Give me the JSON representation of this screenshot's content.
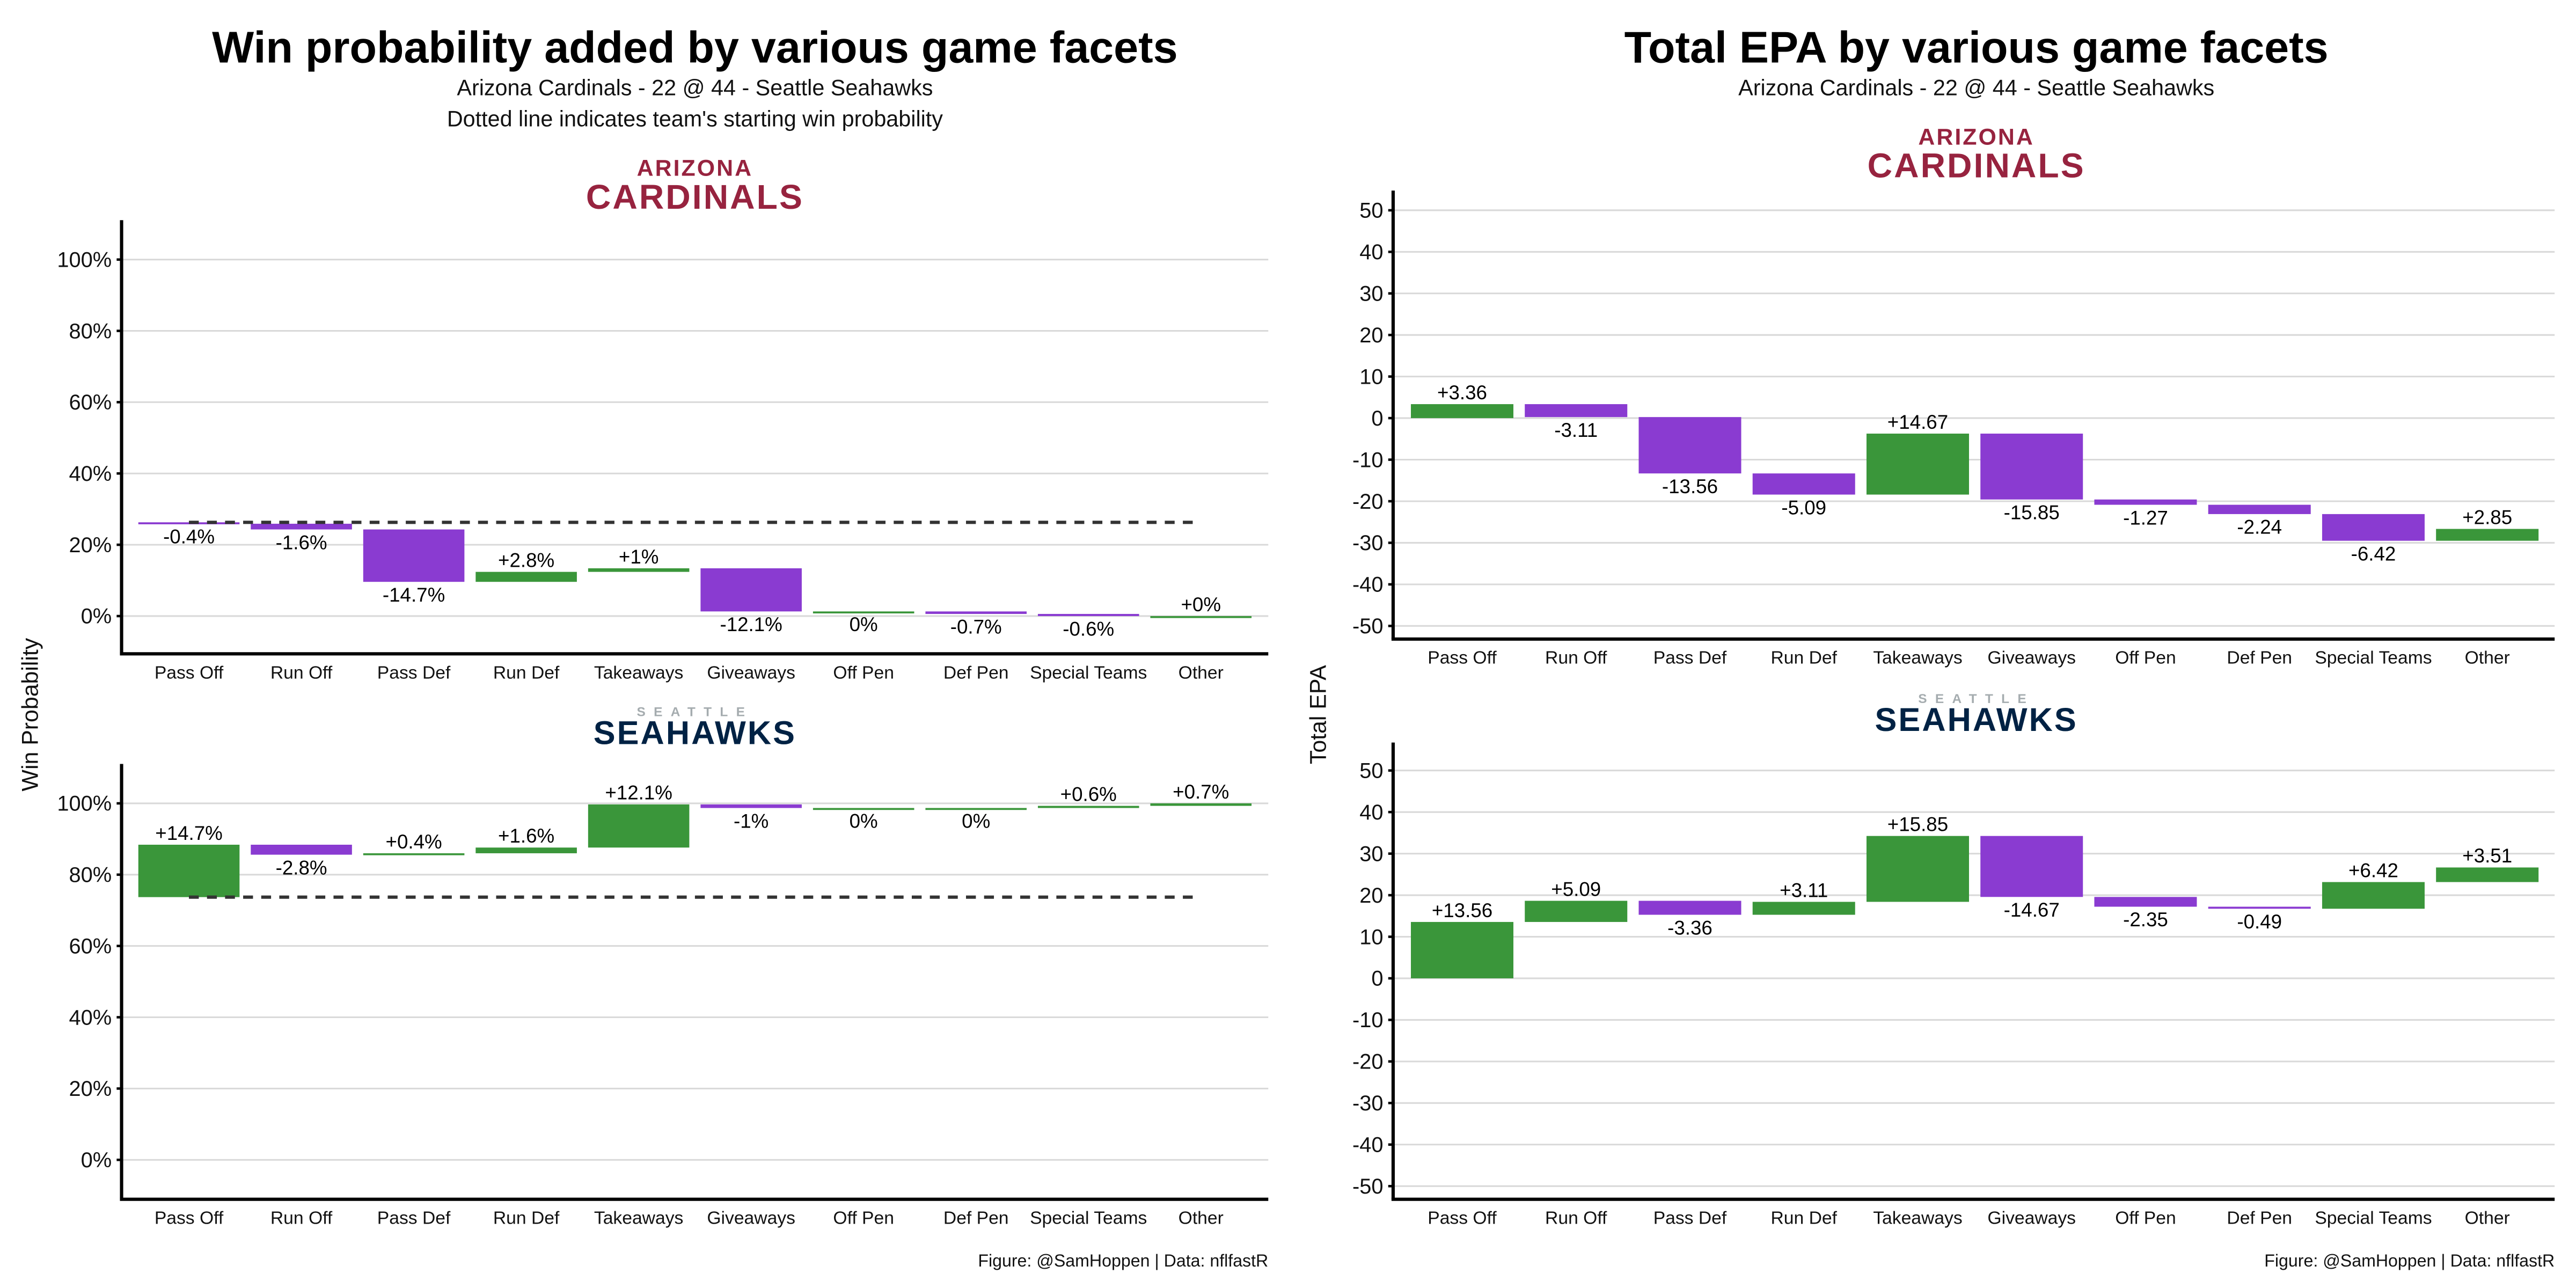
{
  "colors": {
    "positive": "#3a963a",
    "negative": "#8a3bd1",
    "grid": "#d9d9d9",
    "dashed": "#333333",
    "cardinals": "#97233F",
    "seahawks": "#002244"
  },
  "left": {
    "title": "Win probability added by various game facets",
    "subtitle1": "Arizona Cardinals - 22 @ 44 - Seattle Seahawks",
    "subtitle2": "Dotted line indicates team's starting win probability",
    "ylabel": "Win Probability",
    "caption": "Figure: @SamHoppen | Data: nflfastR"
  },
  "right": {
    "title": "Total EPA by various game facets",
    "subtitle1": "Arizona Cardinals - 22 @ 44 - Seattle Seahawks",
    "ylabel": "Total EPA",
    "caption": "Figure: @SamHoppen | Data: nflfastR"
  },
  "logos": {
    "cardinals": [
      "ARIZONA",
      "CARDINALS"
    ],
    "seahawks": [
      "SEATTLE",
      "SEAHAWKS"
    ]
  },
  "chart_data": [
    {
      "type": "bar",
      "subtype": "waterfall",
      "team": "Arizona Cardinals",
      "ylabel": "Win Probability",
      "unit": "%",
      "start": 26.3,
      "ylim": [
        -10,
        110
      ],
      "yticks": [
        0,
        20,
        40,
        60,
        80,
        100
      ],
      "ytick_labels": [
        "0%",
        "20%",
        "40%",
        "60%",
        "80%",
        "100%"
      ],
      "categories": [
        "Pass Off",
        "Run Off",
        "Pass Def",
        "Run Def",
        "Takeaways",
        "Giveaways",
        "Off Pen",
        "Def Pen",
        "Special Teams",
        "Other"
      ],
      "values": [
        -0.4,
        -1.6,
        -14.7,
        2.8,
        1,
        -12.1,
        0,
        -0.7,
        -0.6,
        0
      ],
      "labels": [
        "-0.4%",
        "-1.6%",
        "-14.7%",
        "+2.8%",
        "+1%",
        "-12.1%",
        "0%",
        "-0.7%",
        "-0.6%",
        "+0%"
      ]
    },
    {
      "type": "bar",
      "subtype": "waterfall",
      "team": "Seattle Seahawks",
      "ylabel": "Win Probability",
      "unit": "%",
      "start": 73.7,
      "ylim": [
        -10,
        110
      ],
      "yticks": [
        0,
        20,
        40,
        60,
        80,
        100
      ],
      "ytick_labels": [
        "0%",
        "20%",
        "40%",
        "60%",
        "80%",
        "100%"
      ],
      "categories": [
        "Pass Off",
        "Run Off",
        "Pass Def",
        "Run Def",
        "Takeaways",
        "Giveaways",
        "Off Pen",
        "Def Pen",
        "Special Teams",
        "Other"
      ],
      "values": [
        14.7,
        -2.8,
        0.4,
        1.6,
        12.1,
        -1,
        0,
        0,
        0.6,
        0.7
      ],
      "labels": [
        "+14.7%",
        "-2.8%",
        "+0.4%",
        "+1.6%",
        "+12.1%",
        "-1%",
        "0%",
        "0%",
        "+0.6%",
        "+0.7%"
      ]
    },
    {
      "type": "bar",
      "subtype": "waterfall",
      "team": "Arizona Cardinals",
      "ylabel": "Total EPA",
      "start": 0,
      "ylim": [
        -55,
        55
      ],
      "yticks": [
        -50,
        -40,
        -30,
        -20,
        -10,
        0,
        10,
        20,
        30,
        40,
        50
      ],
      "ytick_labels": [
        "-50",
        "-40",
        "-30",
        "-20",
        "-10",
        "0",
        "10",
        "20",
        "30",
        "40",
        "50"
      ],
      "categories": [
        "Pass Off",
        "Run Off",
        "Pass Def",
        "Run Def",
        "Takeaways",
        "Giveaways",
        "Off Pen",
        "Def Pen",
        "Special Teams",
        "Other"
      ],
      "values": [
        3.36,
        -3.11,
        -13.56,
        -5.09,
        14.67,
        -15.85,
        -1.27,
        -2.24,
        -6.42,
        2.85
      ],
      "labels": [
        "+3.36",
        "-3.11",
        "-13.56",
        "-5.09",
        "+14.67",
        "-15.85",
        "-1.27",
        "-2.24",
        "-6.42",
        "+2.85"
      ]
    },
    {
      "type": "bar",
      "subtype": "waterfall",
      "team": "Seattle Seahawks",
      "ylabel": "Total EPA",
      "start": 0,
      "ylim": [
        -55,
        55
      ],
      "yticks": [
        -50,
        -40,
        -30,
        -20,
        -10,
        0,
        10,
        20,
        30,
        40,
        50
      ],
      "ytick_labels": [
        "-50",
        "-40",
        "-30",
        "-20",
        "-10",
        "0",
        "10",
        "20",
        "30",
        "40",
        "50"
      ],
      "categories": [
        "Pass Off",
        "Run Off",
        "Pass Def",
        "Run Def",
        "Takeaways",
        "Giveaways",
        "Off Pen",
        "Def Pen",
        "Special Teams",
        "Other"
      ],
      "values": [
        13.56,
        5.09,
        -3.36,
        3.11,
        15.85,
        -14.67,
        -2.35,
        -0.49,
        6.42,
        3.51
      ],
      "labels": [
        "+13.56",
        "+5.09",
        "-3.36",
        "+3.11",
        "+15.85",
        "-14.67",
        "-2.35",
        "-0.49",
        "+6.42",
        "+3.51"
      ]
    }
  ]
}
